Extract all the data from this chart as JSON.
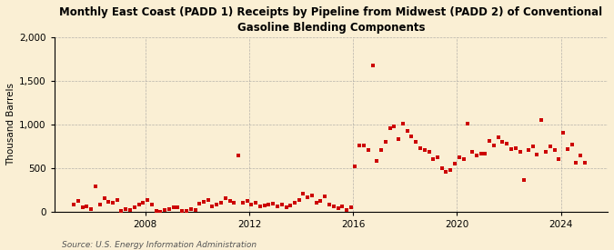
{
  "title": "Monthly East Coast (PADD 1) Receipts by Pipeline from Midwest (PADD 2) of Conventional\nGasoline Blending Components",
  "ylabel": "Thousand Barrels",
  "source": "Source: U.S. Energy Information Administration",
  "background_color": "#faefd4",
  "marker_color": "#cc0000",
  "ylim": [
    0,
    2000
  ],
  "yticks": [
    0,
    500,
    1000,
    1500,
    2000
  ],
  "ytick_labels": [
    "0",
    "500",
    "1,000",
    "1,500",
    "2,000"
  ],
  "xtick_years": [
    2008,
    2012,
    2016,
    2020,
    2024
  ],
  "xlim": [
    2004.5,
    2025.8
  ],
  "data": [
    [
      2005.25,
      80
    ],
    [
      2005.42,
      120
    ],
    [
      2005.58,
      50
    ],
    [
      2005.75,
      60
    ],
    [
      2005.92,
      30
    ],
    [
      2006.08,
      290
    ],
    [
      2006.25,
      80
    ],
    [
      2006.42,
      150
    ],
    [
      2006.58,
      110
    ],
    [
      2006.75,
      100
    ],
    [
      2006.92,
      130
    ],
    [
      2007.08,
      10
    ],
    [
      2007.25,
      30
    ],
    [
      2007.42,
      20
    ],
    [
      2007.58,
      50
    ],
    [
      2007.75,
      80
    ],
    [
      2007.92,
      100
    ],
    [
      2008.08,
      130
    ],
    [
      2008.25,
      80
    ],
    [
      2008.42,
      10
    ],
    [
      2008.58,
      0
    ],
    [
      2008.75,
      20
    ],
    [
      2008.92,
      30
    ],
    [
      2009.08,
      50
    ],
    [
      2009.25,
      50
    ],
    [
      2009.42,
      10
    ],
    [
      2009.58,
      5
    ],
    [
      2009.75,
      30
    ],
    [
      2009.92,
      20
    ],
    [
      2010.08,
      90
    ],
    [
      2010.25,
      110
    ],
    [
      2010.42,
      130
    ],
    [
      2010.58,
      60
    ],
    [
      2010.75,
      80
    ],
    [
      2010.92,
      100
    ],
    [
      2011.08,
      150
    ],
    [
      2011.25,
      120
    ],
    [
      2011.42,
      100
    ],
    [
      2011.58,
      640
    ],
    [
      2011.75,
      100
    ],
    [
      2011.92,
      120
    ],
    [
      2012.08,
      80
    ],
    [
      2012.25,
      100
    ],
    [
      2012.42,
      60
    ],
    [
      2012.58,
      70
    ],
    [
      2012.75,
      80
    ],
    [
      2012.92,
      90
    ],
    [
      2013.08,
      60
    ],
    [
      2013.25,
      80
    ],
    [
      2013.42,
      50
    ],
    [
      2013.58,
      70
    ],
    [
      2013.75,
      100
    ],
    [
      2013.92,
      130
    ],
    [
      2014.08,
      200
    ],
    [
      2014.25,
      160
    ],
    [
      2014.42,
      180
    ],
    [
      2014.58,
      100
    ],
    [
      2014.75,
      120
    ],
    [
      2014.92,
      170
    ],
    [
      2015.08,
      80
    ],
    [
      2015.25,
      60
    ],
    [
      2015.42,
      40
    ],
    [
      2015.58,
      60
    ],
    [
      2015.75,
      20
    ],
    [
      2015.92,
      50
    ],
    [
      2016.08,
      520
    ],
    [
      2016.25,
      760
    ],
    [
      2016.42,
      760
    ],
    [
      2016.58,
      700
    ],
    [
      2016.75,
      1680
    ],
    [
      2016.92,
      580
    ],
    [
      2017.08,
      700
    ],
    [
      2017.25,
      800
    ],
    [
      2017.42,
      950
    ],
    [
      2017.58,
      980
    ],
    [
      2017.75,
      830
    ],
    [
      2017.92,
      1010
    ],
    [
      2018.08,
      920
    ],
    [
      2018.25,
      860
    ],
    [
      2018.42,
      800
    ],
    [
      2018.58,
      730
    ],
    [
      2018.75,
      700
    ],
    [
      2018.92,
      680
    ],
    [
      2019.08,
      600
    ],
    [
      2019.25,
      620
    ],
    [
      2019.42,
      500
    ],
    [
      2019.58,
      450
    ],
    [
      2019.75,
      480
    ],
    [
      2019.92,
      550
    ],
    [
      2020.08,
      620
    ],
    [
      2020.25,
      600
    ],
    [
      2020.42,
      1010
    ],
    [
      2020.58,
      680
    ],
    [
      2020.75,
      640
    ],
    [
      2020.92,
      660
    ],
    [
      2021.08,
      660
    ],
    [
      2021.25,
      810
    ],
    [
      2021.42,
      760
    ],
    [
      2021.58,
      850
    ],
    [
      2021.75,
      800
    ],
    [
      2021.92,
      780
    ],
    [
      2022.08,
      710
    ],
    [
      2022.25,
      730
    ],
    [
      2022.42,
      680
    ],
    [
      2022.58,
      360
    ],
    [
      2022.75,
      700
    ],
    [
      2022.92,
      750
    ],
    [
      2023.08,
      650
    ],
    [
      2023.25,
      1050
    ],
    [
      2023.42,
      680
    ],
    [
      2023.58,
      750
    ],
    [
      2023.75,
      700
    ],
    [
      2023.92,
      600
    ],
    [
      2024.08,
      900
    ],
    [
      2024.25,
      710
    ],
    [
      2024.42,
      770
    ],
    [
      2024.58,
      560
    ],
    [
      2024.75,
      640
    ],
    [
      2024.92,
      560
    ]
  ]
}
